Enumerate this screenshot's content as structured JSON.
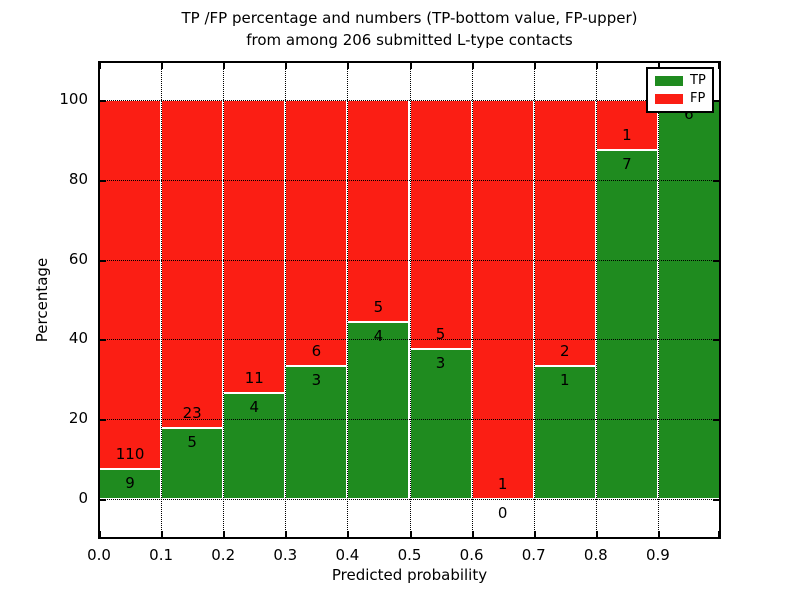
{
  "title": {
    "line1": "TP /FP percentage and numbers (TP-bottom value, FP-upper)",
    "line2": "from among 206 submitted L-type contacts"
  },
  "axes": {
    "xlabel": "Predicted probability",
    "ylabel": "Percentage",
    "x_tick_labels": [
      "0.0",
      "0.1",
      "0.2",
      "0.3",
      "0.4",
      "0.5",
      "0.6",
      "0.7",
      "0.8",
      "0.9"
    ],
    "y_tick_labels": [
      "0",
      "20",
      "40",
      "60",
      "80",
      "100"
    ],
    "y_tick_values": [
      0,
      20,
      40,
      60,
      80,
      100
    ]
  },
  "legend": {
    "items": [
      {
        "label": "TP",
        "color": "#1f8b1f"
      },
      {
        "label": "FP",
        "color": "#fb1e14"
      }
    ]
  },
  "colors": {
    "tp": "#1f8b1f",
    "fp": "#fb1e14",
    "grid": "#000000",
    "background": "#ffffff"
  },
  "chart_data": {
    "type": "bar",
    "stacked": true,
    "title": "TP /FP percentage and numbers (TP-bottom value, FP-upper) from among 206 submitted L-type contacts",
    "xlabel": "Predicted probability",
    "ylabel": "Percentage",
    "xlim": [
      0.0,
      1.0
    ],
    "ylim": [
      -10,
      110
    ],
    "grid": true,
    "legend_position": "upper right",
    "total_contacts": 206,
    "bin_width": 0.1,
    "series_order_note": "TP on bottom (green), FP stacked on top (red); labels show counts, FP count above TP count",
    "bins": [
      {
        "x_start": 0.0,
        "x_end": 0.1,
        "tp_count": 9,
        "fp_count": 110,
        "tp_pct": 7.56,
        "fp_pct": 92.44
      },
      {
        "x_start": 0.1,
        "x_end": 0.2,
        "tp_count": 5,
        "fp_count": 23,
        "tp_pct": 17.86,
        "fp_pct": 82.14
      },
      {
        "x_start": 0.2,
        "x_end": 0.3,
        "tp_count": 4,
        "fp_count": 11,
        "tp_pct": 26.67,
        "fp_pct": 73.33
      },
      {
        "x_start": 0.3,
        "x_end": 0.4,
        "tp_count": 3,
        "fp_count": 6,
        "tp_pct": 33.33,
        "fp_pct": 66.67
      },
      {
        "x_start": 0.4,
        "x_end": 0.5,
        "tp_count": 4,
        "fp_count": 5,
        "tp_pct": 44.44,
        "fp_pct": 55.56
      },
      {
        "x_start": 0.5,
        "x_end": 0.6,
        "tp_count": 3,
        "fp_count": 5,
        "tp_pct": 37.5,
        "fp_pct": 62.5
      },
      {
        "x_start": 0.6,
        "x_end": 0.7,
        "tp_count": 0,
        "fp_count": 1,
        "tp_pct": 0.0,
        "fp_pct": 100.0
      },
      {
        "x_start": 0.7,
        "x_end": 0.8,
        "tp_count": 1,
        "fp_count": 2,
        "tp_pct": 33.33,
        "fp_pct": 66.67
      },
      {
        "x_start": 0.8,
        "x_end": 0.9,
        "tp_count": 7,
        "fp_count": 1,
        "tp_pct": 87.5,
        "fp_pct": 12.5
      },
      {
        "x_start": 0.9,
        "x_end": 1.0,
        "tp_count": 6,
        "fp_count": 0,
        "tp_pct": 100.0,
        "fp_pct": 0.0
      }
    ]
  }
}
